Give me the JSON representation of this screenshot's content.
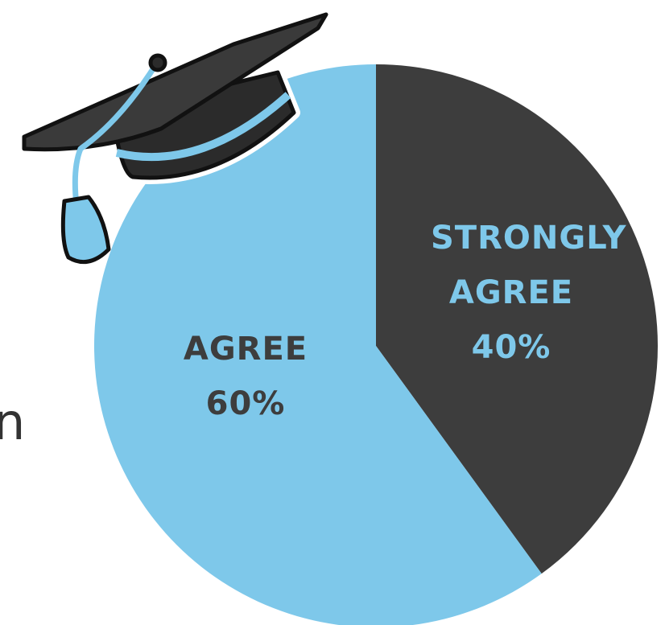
{
  "chart_data": {
    "type": "pie",
    "categories": [
      "STRONGLY AGREE",
      "AGREE"
    ],
    "values": [
      40,
      60
    ],
    "value_labels": [
      "40%",
      "60%"
    ],
    "colors": [
      "#3d3d3d",
      "#7ec8ea"
    ],
    "label_colors": [
      "#7ec8ea",
      "#3d3d3d"
    ],
    "start_angle": 0,
    "direction": "clockwise"
  },
  "fragment": "n"
}
